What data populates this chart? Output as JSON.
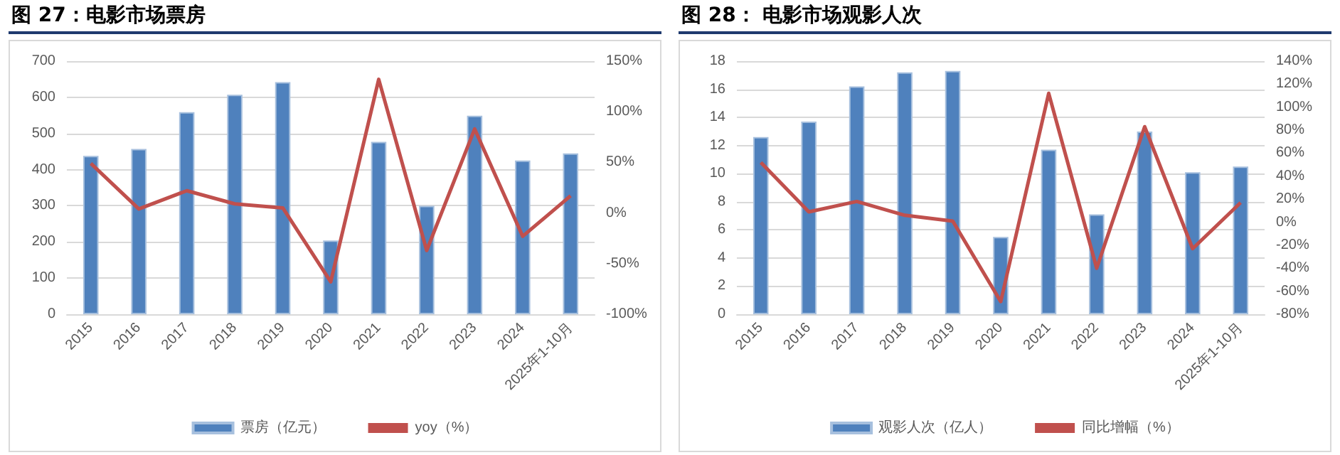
{
  "chart_data": [
    {
      "type": "bar",
      "title": "图 27：电影市场票房",
      "categories": [
        "2015",
        "2016",
        "2017",
        "2018",
        "2019",
        "2020",
        "2021",
        "2022",
        "2023",
        "2024",
        "2025年1-10月"
      ],
      "series": [
        {
          "name": "票房（亿元）",
          "color": "#4f81bd",
          "values": [
            438,
            457,
            559,
            607,
            642,
            204,
            477,
            300,
            549,
            425,
            445
          ]
        },
        {
          "name": "yoy（%）",
          "type": "line",
          "axis": "y2",
          "color": "#c0504d",
          "values": [
            49,
            4,
            22,
            9,
            5,
            -68,
            132,
            -37,
            83,
            -23,
            17
          ]
        }
      ],
      "ylim": [
        0,
        700
      ],
      "yticks": [
        0,
        100,
        200,
        300,
        400,
        500,
        600,
        700
      ],
      "y2lim": [
        -100,
        150
      ],
      "y2ticks": [
        {
          "value": -100,
          "label": "-100%"
        },
        {
          "value": -50,
          "label": "-50%"
        },
        {
          "value": 0,
          "label": "0%"
        },
        {
          "value": 50,
          "label": "50%"
        },
        {
          "value": 100,
          "label": "100%"
        },
        {
          "value": 150,
          "label": "150%"
        }
      ],
      "grid": "y",
      "legend": "bottom",
      "marker": "none"
    },
    {
      "type": "bar",
      "title": "图 28： 电影市场观影人次",
      "categories": [
        "2015",
        "2016",
        "2017",
        "2018",
        "2019",
        "2020",
        "2021",
        "2022",
        "2023",
        "2024",
        "2025年1-10月"
      ],
      "series": [
        {
          "name": "观影人次（亿人）",
          "color": "#4f81bd",
          "values": [
            12.6,
            13.7,
            16.2,
            17.2,
            17.3,
            5.5,
            11.7,
            7.1,
            13.0,
            10.1,
            10.5
          ]
        },
        {
          "name": "同比增幅（%）",
          "type": "line",
          "axis": "y2",
          "color": "#c0504d",
          "values": [
            52,
            9,
            18,
            6,
            1,
            -69,
            112,
            -40,
            83,
            -23,
            17
          ]
        }
      ],
      "ylim": [
        0,
        18
      ],
      "yticks": [
        0,
        2,
        4,
        6,
        8,
        10,
        12,
        14,
        16,
        18
      ],
      "y2lim": [
        -80,
        140
      ],
      "y2ticks": [
        {
          "value": -80,
          "label": "-80%"
        },
        {
          "value": -60,
          "label": "-60%"
        },
        {
          "value": -40,
          "label": "-40%"
        },
        {
          "value": -20,
          "label": "-20%"
        },
        {
          "value": 0,
          "label": "0%"
        },
        {
          "value": 20,
          "label": "20%"
        },
        {
          "value": 40,
          "label": "40%"
        },
        {
          "value": 60,
          "label": "60%"
        },
        {
          "value": 80,
          "label": "80%"
        },
        {
          "value": 100,
          "label": "100%"
        },
        {
          "value": 120,
          "label": "120%"
        },
        {
          "value": 140,
          "label": "140%"
        }
      ],
      "grid": "y",
      "legend": "bottom",
      "marker": "none"
    }
  ]
}
